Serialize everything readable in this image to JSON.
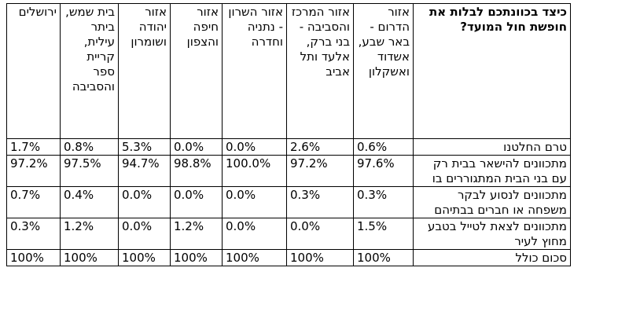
{
  "table": {
    "question": "כיצד בכוונתכם לבלות את חופשת חול המועד?",
    "columns": [
      "אזור הדרום - באר שבע, אשדוד ואשקלון",
      "אזור המרכז והסביבה - בני ברק, אלעד ותל אביב",
      "אזור השרון - נתניה וחדרה",
      "אזור חיפה והצפון",
      "אזור יהודה ושומרון",
      "בית שמש, ביתר עילית, קריית ספר והסביבה",
      "ירושלים"
    ],
    "rows": [
      {
        "label": "טרם החלטנו",
        "values": [
          "0.6%",
          "2.6%",
          "0.0%",
          "0.0%",
          "5.3%",
          "0.8%",
          "1.7%"
        ]
      },
      {
        "label": "מתכוונים להישאר בבית רק עם בני הבית המתגוררים בו",
        "values": [
          "97.6%",
          "97.2%",
          "100.0%",
          "98.8%",
          "94.7%",
          "97.5%",
          "97.2%"
        ]
      },
      {
        "label": "מתכוונים לנסוע לבקר משפחה או חברים בבתיהם",
        "values": [
          "0.3%",
          "0.3%",
          "0.0%",
          "0.0%",
          "0.0%",
          "0.4%",
          "0.7%"
        ]
      },
      {
        "label": "מתכוונים לצאת לטייל בטבע מחוץ לעיר",
        "values": [
          "1.5%",
          "0.0%",
          "0.0%",
          "1.2%",
          "0.0%",
          "1.2%",
          "0.3%"
        ]
      },
      {
        "label": "סכום כולל",
        "values": [
          "100%",
          "100%",
          "100%",
          "100%",
          "100%",
          "100%",
          "100%"
        ]
      }
    ]
  }
}
